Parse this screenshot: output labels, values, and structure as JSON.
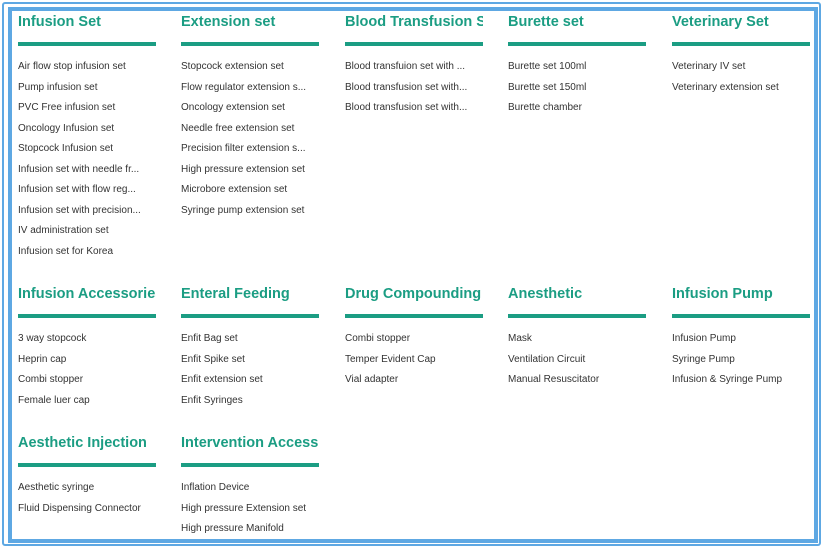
{
  "colors": {
    "accent": "#1b9d83",
    "border": "#5ea8e3",
    "text": "#333333"
  },
  "categories": [
    {
      "title": "Infusion Set",
      "items": [
        "Air flow stop infusion set",
        "Pump infusion set",
        "PVC Free infusion set",
        "Oncology Infusion set",
        "Stopcock Infusion set",
        "Infusion set with needle fr...",
        "Infusion set with flow reg...",
        "Infusion set with precision...",
        "IV administration set",
        "Infusion set for Korea"
      ]
    },
    {
      "title": "Extension set",
      "items": [
        "Stopcock extension set",
        "Flow regulator extension s...",
        "Oncology extension set",
        "Needle free extension set",
        "Precision filter extension s...",
        "High pressure extension set",
        "Microbore extension set",
        "Syringe pump extension set"
      ]
    },
    {
      "title": "Blood Transfusion Set",
      "items": [
        "Blood transfuion set with ...",
        "Blood transfusion set with...",
        "Blood transfusion set with..."
      ]
    },
    {
      "title": "Burette set",
      "items": [
        "Burette set 100ml",
        "Burette set 150ml",
        "Burette chamber"
      ]
    },
    {
      "title": "Veterinary Set",
      "items": [
        "Veterinary IV set",
        "Veterinary extension set"
      ]
    },
    {
      "title": "Infusion Accessories",
      "items": [
        "3 way stopcock",
        "Heprin cap",
        "Combi stopper",
        "Female luer cap"
      ]
    },
    {
      "title": "Enteral Feeding",
      "items": [
        "Enfit Bag set",
        "Enfit Spike set",
        "Enfit extension set",
        "Enfit Syringes"
      ]
    },
    {
      "title": "Drug Compounding",
      "items": [
        "Combi stopper",
        "Temper Evident Cap",
        "Vial  adapter"
      ]
    },
    {
      "title": "Anesthetic",
      "items": [
        "Mask",
        "Ventilation Circuit",
        "Manual Resuscitator"
      ]
    },
    {
      "title": "Infusion Pump",
      "items": [
        "Infusion Pump",
        "Syringe Pump",
        "Infusion & Syringe Pump"
      ]
    },
    {
      "title": "Aesthetic Injection",
      "items": [
        "Aesthetic syringe",
        "Fluid Dispensing Connector"
      ]
    },
    {
      "title": "Intervention Access...",
      "items": [
        "Inflation Device",
        "High pressure Extension set",
        "High pressure Manifold"
      ]
    }
  ]
}
